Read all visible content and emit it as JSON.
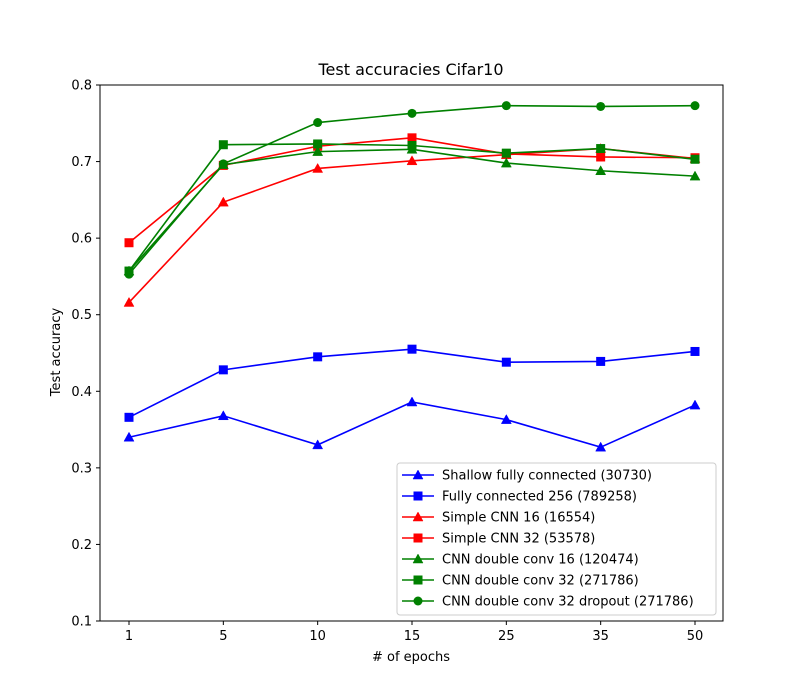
{
  "chart_data": {
    "type": "line",
    "title": "Test accuracies Cifar10",
    "xlabel": "# of epochs",
    "ylabel": "Test accuracy",
    "categories": [
      "1",
      "5",
      "10",
      "15",
      "25",
      "35",
      "50"
    ],
    "ylim": [
      0.1,
      0.8
    ],
    "yticks": [
      "0.1",
      "0.2",
      "0.3",
      "0.4",
      "0.5",
      "0.6",
      "0.7",
      "0.8"
    ],
    "grid": false,
    "legend_position": "bottom-right",
    "series": [
      {
        "name": "Shallow fully connected (30730)",
        "color": "#0000ff",
        "marker": "triangle",
        "values": [
          0.34,
          0.368,
          0.33,
          0.386,
          0.363,
          0.327,
          0.382
        ]
      },
      {
        "name": "Fully connected 256 (789258)",
        "color": "#0000ff",
        "marker": "square",
        "values": [
          0.366,
          0.428,
          0.445,
          0.455,
          0.438,
          0.439,
          0.452
        ]
      },
      {
        "name": "Simple CNN 16 (16554)",
        "color": "#ff0000",
        "marker": "triangle",
        "values": [
          0.516,
          0.647,
          0.691,
          0.701,
          0.709,
          0.717,
          0.704
        ]
      },
      {
        "name": "Simple CNN 32 (53578)",
        "color": "#ff0000",
        "marker": "square",
        "values": [
          0.594,
          0.695,
          0.72,
          0.731,
          0.71,
          0.706,
          0.705
        ]
      },
      {
        "name": "CNN double conv 16 (120474)",
        "color": "#008000",
        "marker": "triangle",
        "values": [
          0.557,
          0.696,
          0.713,
          0.716,
          0.698,
          0.688,
          0.681
        ]
      },
      {
        "name": "CNN double conv 32 (271786)",
        "color": "#008000",
        "marker": "square",
        "values": [
          0.557,
          0.722,
          0.723,
          0.721,
          0.711,
          0.717,
          0.703
        ]
      },
      {
        "name": "CNN double conv 32 dropout (271786)",
        "color": "#008000",
        "marker": "circle",
        "values": [
          0.553,
          0.697,
          0.751,
          0.763,
          0.773,
          0.772,
          0.773
        ]
      }
    ]
  }
}
